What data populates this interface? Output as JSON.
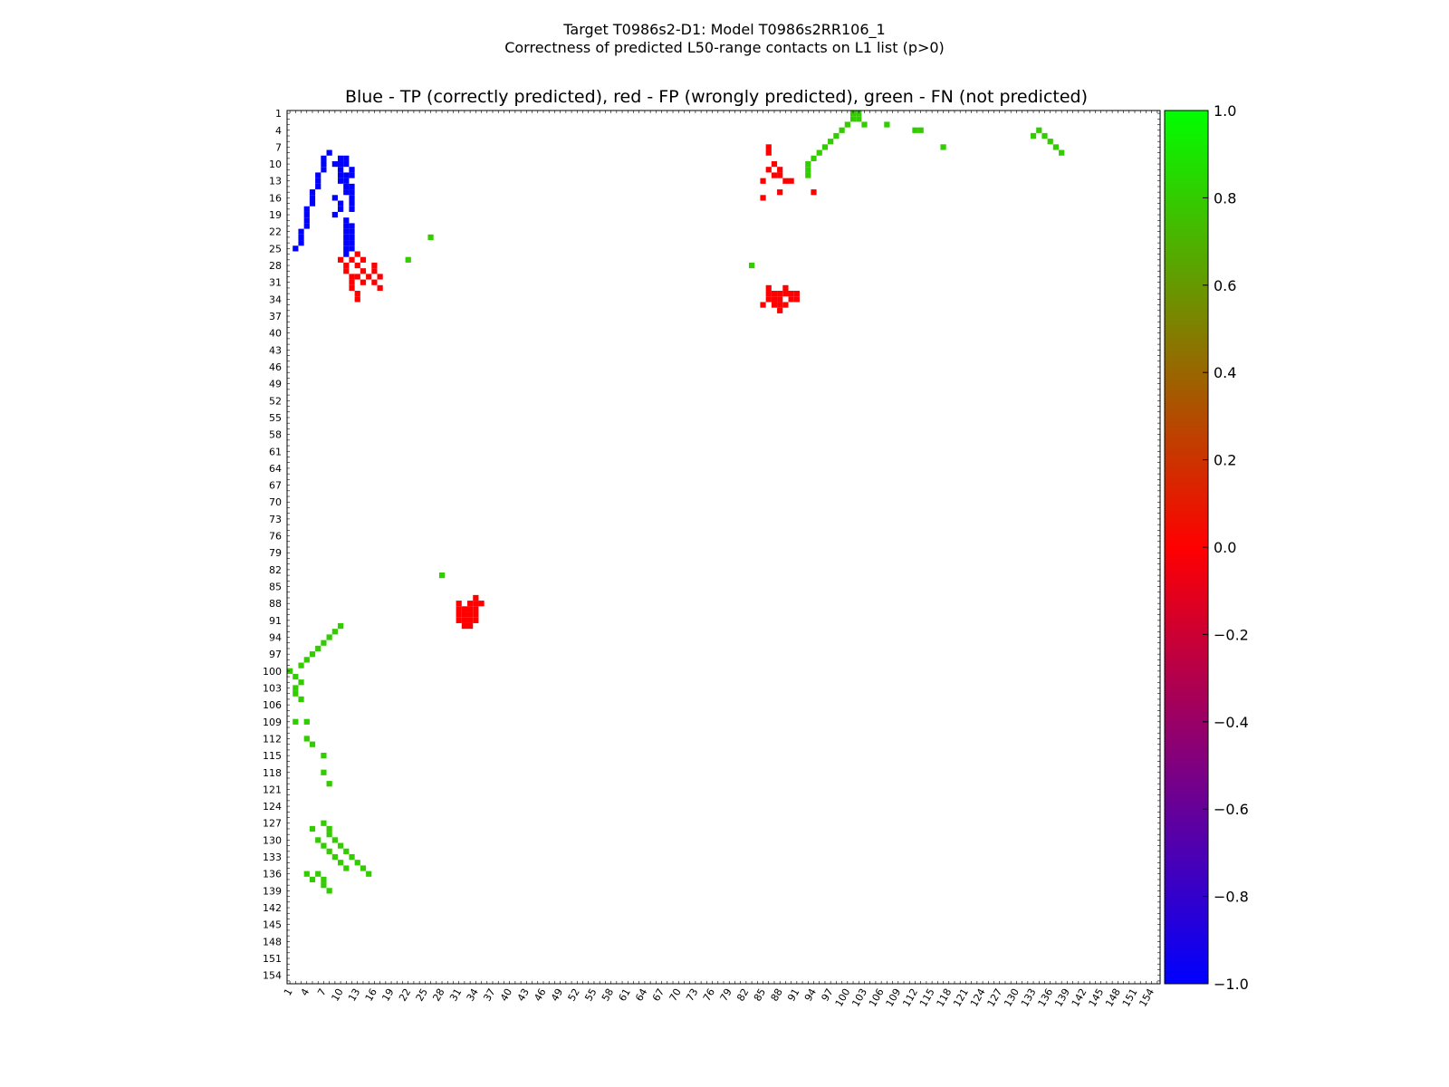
{
  "chart_data": {
    "type": "heatmap",
    "suptitle_line1": "Target T0986s2-D1: Model T0986s2RR106_1",
    "suptitle_line2": "Correctness of predicted L50-range contacts on L1 list (p>0)",
    "title": "Blue - TP (correctly predicted), red - FP (wrongly predicted), green - FN (not predicted)",
    "xlabel": "",
    "ylabel": "",
    "n_residues": 155,
    "x_range": [
      1,
      155
    ],
    "y_range": [
      1,
      155
    ],
    "tick_labels": [
      "1",
      "4",
      "7",
      "10",
      "13",
      "16",
      "19",
      "22",
      "25",
      "28",
      "31",
      "34",
      "37",
      "40",
      "43",
      "46",
      "49",
      "52",
      "55",
      "58",
      "61",
      "64",
      "67",
      "70",
      "73",
      "76",
      "79",
      "82",
      "85",
      "88",
      "91",
      "94",
      "97",
      "100",
      "103",
      "106",
      "109",
      "112",
      "115",
      "118",
      "121",
      "124",
      "127",
      "130",
      "133",
      "136",
      "139",
      "142",
      "145",
      "148",
      "151",
      "154"
    ],
    "colorbar": {
      "range": [
        -1.0,
        1.0
      ],
      "tick_labels": [
        "1.0",
        "0.8",
        "0.6",
        "0.4",
        "0.2",
        "0.0",
        "−0.2",
        "−0.4",
        "−0.6",
        "−0.8",
        "−1.0"
      ],
      "tick_values": [
        1.0,
        0.8,
        0.6,
        0.4,
        0.2,
        0.0,
        -0.2,
        -0.4,
        -0.6,
        -0.8,
        -1.0
      ],
      "colors": [
        "#0000ff",
        "#ff0000",
        "#00ff00"
      ]
    },
    "categories": {
      "TP": {
        "value": -1,
        "color": "#0000ff"
      },
      "FP": {
        "value": 0,
        "color": "#ff0000"
      },
      "FN": {
        "value": 0.8,
        "color": "#33cc00"
      }
    },
    "cells": {
      "TP": [
        [
          9,
          10
        ],
        [
          9,
          11
        ],
        [
          10,
          9
        ],
        [
          10,
          10
        ],
        [
          10,
          11
        ],
        [
          11,
          10
        ],
        [
          11,
          12
        ],
        [
          12,
          10
        ],
        [
          12,
          11
        ],
        [
          12,
          12
        ],
        [
          13,
          10
        ],
        [
          13,
          11
        ],
        [
          14,
          11
        ],
        [
          14,
          12
        ],
        [
          15,
          11
        ],
        [
          15,
          12
        ],
        [
          16,
          9
        ],
        [
          16,
          12
        ],
        [
          17,
          10
        ],
        [
          17,
          12
        ],
        [
          18,
          12
        ],
        [
          22,
          12
        ],
        [
          23,
          12
        ],
        [
          24,
          12
        ],
        [
          25,
          12
        ],
        [
          21,
          12
        ],
        [
          19,
          9
        ],
        [
          18,
          10
        ],
        [
          20,
          11
        ],
        [
          21,
          11
        ],
        [
          22,
          11
        ],
        [
          23,
          11
        ],
        [
          24,
          11
        ],
        [
          25,
          11
        ],
        [
          26,
          11
        ],
        [
          8,
          8
        ],
        [
          9,
          7
        ],
        [
          10,
          7
        ],
        [
          11,
          7
        ],
        [
          12,
          6
        ],
        [
          13,
          6
        ],
        [
          14,
          6
        ],
        [
          15,
          5
        ],
        [
          16,
          5
        ],
        [
          17,
          5
        ],
        [
          18,
          4
        ],
        [
          19,
          4
        ],
        [
          20,
          4
        ],
        [
          21,
          4
        ],
        [
          22,
          3
        ],
        [
          23,
          3
        ],
        [
          24,
          3
        ],
        [
          25,
          2
        ]
      ],
      "FP": [
        [
          88,
          31
        ],
        [
          89,
          31
        ],
        [
          90,
          31
        ],
        [
          91,
          31
        ],
        [
          92,
          32
        ],
        [
          88,
          33
        ],
        [
          89,
          33
        ],
        [
          90,
          33
        ],
        [
          91,
          33
        ],
        [
          87,
          34
        ],
        [
          88,
          34
        ],
        [
          89,
          34
        ],
        [
          90,
          34
        ],
        [
          88,
          35
        ],
        [
          90,
          32
        ],
        [
          91,
          32
        ],
        [
          89,
          32
        ],
        [
          92,
          33
        ],
        [
          91,
          34
        ],
        [
          32,
          86
        ],
        [
          33,
          86
        ],
        [
          34,
          87
        ],
        [
          34,
          86
        ],
        [
          35,
          85
        ],
        [
          35,
          87
        ],
        [
          33,
          88
        ],
        [
          34,
          88
        ],
        [
          35,
          88
        ],
        [
          36,
          88
        ],
        [
          32,
          89
        ],
        [
          33,
          89
        ],
        [
          33,
          90
        ],
        [
          34,
          90
        ],
        [
          34,
          91
        ],
        [
          35,
          89
        ],
        [
          33,
          91
        ],
        [
          33,
          87
        ],
        [
          11,
          88
        ],
        [
          12,
          88
        ],
        [
          13,
          89
        ],
        [
          13,
          90
        ],
        [
          12,
          87
        ],
        [
          15,
          94
        ],
        [
          15,
          88
        ],
        [
          13,
          85
        ],
        [
          8,
          86
        ],
        [
          16,
          85
        ],
        [
          7,
          86
        ],
        [
          11,
          86
        ],
        [
          10,
          87
        ],
        [
          27,
          12
        ],
        [
          26,
          13
        ],
        [
          28,
          13
        ],
        [
          29,
          14
        ],
        [
          30,
          15
        ],
        [
          31,
          16
        ],
        [
          32,
          17
        ],
        [
          29,
          11
        ],
        [
          27,
          10
        ],
        [
          28,
          11
        ],
        [
          30,
          13
        ],
        [
          31,
          14
        ],
        [
          29,
          16
        ],
        [
          30,
          17
        ],
        [
          28,
          16
        ],
        [
          27,
          14
        ],
        [
          30,
          12
        ],
        [
          31,
          12
        ],
        [
          32,
          12
        ],
        [
          33,
          13
        ],
        [
          34,
          13
        ]
      ],
      "FN": [
        [
          1,
          101
        ],
        [
          2,
          101
        ],
        [
          3,
          100
        ],
        [
          4,
          99
        ],
        [
          5,
          98
        ],
        [
          6,
          97
        ],
        [
          7,
          96
        ],
        [
          8,
          95
        ],
        [
          9,
          94
        ],
        [
          10,
          93
        ],
        [
          11,
          93
        ],
        [
          12,
          93
        ],
        [
          2,
          102
        ],
        [
          1,
          102
        ],
        [
          3,
          103
        ],
        [
          3,
          107
        ],
        [
          4,
          112
        ],
        [
          4,
          113
        ],
        [
          7,
          117
        ],
        [
          5,
          133
        ],
        [
          4,
          134
        ],
        [
          5,
          135
        ],
        [
          6,
          136
        ],
        [
          7,
          137
        ],
        [
          8,
          138
        ],
        [
          100,
          1
        ],
        [
          101,
          2
        ],
        [
          102,
          3
        ],
        [
          103,
          2
        ],
        [
          99,
          3
        ],
        [
          98,
          4
        ],
        [
          97,
          5
        ],
        [
          96,
          6
        ],
        [
          95,
          7
        ],
        [
          94,
          8
        ],
        [
          93,
          9
        ],
        [
          92,
          10
        ],
        [
          104,
          2
        ],
        [
          105,
          3
        ],
        [
          109,
          2
        ],
        [
          109,
          4
        ],
        [
          112,
          4
        ],
        [
          113,
          5
        ],
        [
          115,
          7
        ],
        [
          118,
          7
        ],
        [
          120,
          8
        ],
        [
          128,
          5
        ],
        [
          130,
          6
        ],
        [
          131,
          7
        ],
        [
          132,
          8
        ],
        [
          133,
          9
        ],
        [
          134,
          10
        ],
        [
          135,
          11
        ],
        [
          136,
          6
        ],
        [
          137,
          5
        ],
        [
          136,
          4
        ],
        [
          138,
          7
        ],
        [
          139,
          8
        ],
        [
          137,
          7
        ],
        [
          133,
          12
        ],
        [
          134,
          13
        ],
        [
          135,
          14
        ],
        [
          136,
          15
        ],
        [
          132,
          11
        ],
        [
          131,
          10
        ],
        [
          130,
          9
        ],
        [
          129,
          8
        ],
        [
          128,
          8
        ],
        [
          127,
          7
        ],
        [
          83,
          28
        ],
        [
          28,
          83
        ],
        [
          23,
          26
        ],
        [
          27,
          22
        ]
      ]
    }
  }
}
